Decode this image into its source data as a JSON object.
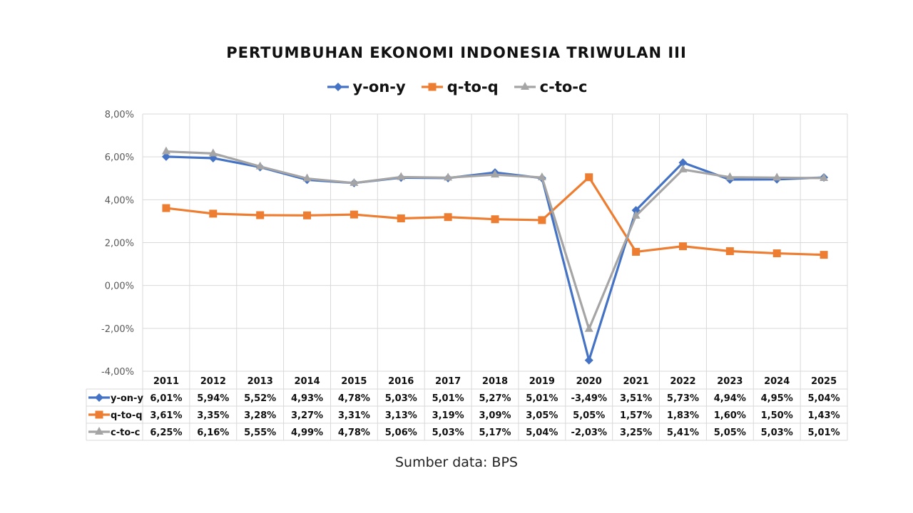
{
  "chart_data": {
    "type": "line",
    "title": "PERTUMBUHAN EKONOMI INDONESIA TRIWULAN III",
    "categories": [
      "2011",
      "2012",
      "2013",
      "2014",
      "2015",
      "2016",
      "2017",
      "2018",
      "2019",
      "2020",
      "2021",
      "2022",
      "2023",
      "2024",
      "2025"
    ],
    "ylim": [
      -4,
      8
    ],
    "yticks": [
      "-4,00%",
      "-2,00%",
      "0,00%",
      "2,00%",
      "4,00%",
      "6,00%",
      "8,00%"
    ],
    "grid": true,
    "legend_position": "top",
    "data_table": true,
    "series": [
      {
        "name": "y-on-y",
        "color": "#4472C4",
        "marker": "diamond",
        "values": [
          6.01,
          5.94,
          5.52,
          4.93,
          4.78,
          5.03,
          5.01,
          5.27,
          5.01,
          -3.49,
          3.51,
          5.73,
          4.94,
          4.95,
          5.04
        ],
        "labels": [
          "6,01%",
          "5,94%",
          "5,52%",
          "4,93%",
          "4,78%",
          "5,03%",
          "5,01%",
          "5,27%",
          "5,01%",
          "-3,49%",
          "3,51%",
          "5,73%",
          "4,94%",
          "4,95%",
          "5,04%"
        ]
      },
      {
        "name": "q-to-q",
        "color": "#ED7D31",
        "marker": "square",
        "values": [
          3.61,
          3.35,
          3.28,
          3.27,
          3.31,
          3.13,
          3.19,
          3.09,
          3.05,
          5.05,
          1.57,
          1.83,
          1.6,
          1.5,
          1.43
        ],
        "labels": [
          "3,61%",
          "3,35%",
          "3,28%",
          "3,27%",
          "3,31%",
          "3,13%",
          "3,19%",
          "3,09%",
          "3,05%",
          "5,05%",
          "1,57%",
          "1,83%",
          "1,60%",
          "1,50%",
          "1,43%"
        ]
      },
      {
        "name": "c-to-c",
        "color": "#A5A5A5",
        "marker": "triangle",
        "values": [
          6.25,
          6.16,
          5.55,
          4.99,
          4.78,
          5.06,
          5.03,
          5.17,
          5.04,
          -2.03,
          3.25,
          5.41,
          5.05,
          5.03,
          5.01
        ],
        "labels": [
          "6,25%",
          "6,16%",
          "5,55%",
          "4,99%",
          "4,78%",
          "5,06%",
          "5,03%",
          "5,17%",
          "5,04%",
          "-2,03%",
          "3,25%",
          "5,41%",
          "5,05%",
          "5,03%",
          "5,01%"
        ]
      }
    ]
  },
  "source": "Sumber data: BPS"
}
